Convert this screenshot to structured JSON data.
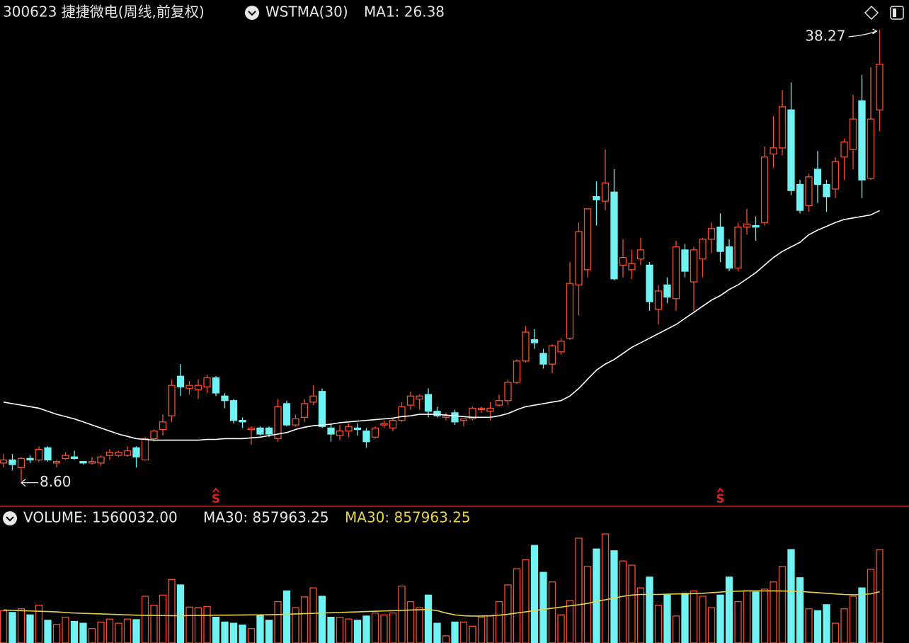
{
  "chart_data": {
    "type": "candlestick",
    "title": "300623 捷捷微电(周线,前复权)",
    "price": {
      "indicator": "WSTMA(30)",
      "ylim": [
        7.0,
        40.22
      ],
      "up_color": "#f0502e",
      "down_color": "#70f2f2",
      "open": [
        9.8,
        10.0,
        9.5,
        10.1,
        10.0,
        10.8,
        9.8,
        10.1,
        10.2,
        9.9,
        9.8,
        9.8,
        10.3,
        10.3,
        10.3,
        10.8,
        10.0,
        11.4,
        12.0,
        12.9,
        15.5,
        14.7,
        14.6,
        14.8,
        15.4,
        14.2,
        13.9,
        12.6,
        12.0,
        12.1,
        12.1,
        11.4,
        13.7,
        12.3,
        12.8,
        13.8,
        14.5,
        12.1,
        11.6,
        11.9,
        12.1,
        11.9,
        11.5,
        12.3,
        12.1,
        12.6,
        13.6,
        14.0,
        14.3,
        13.2,
        12.8,
        13.1,
        12.6,
        12.7,
        13.3,
        13.2,
        13.6,
        13.9,
        15.1,
        16.5,
        17.9,
        17.0,
        16.3,
        17.1,
        18.0,
        21.5,
        22.5,
        27.3,
        27.0,
        27.6,
        22.8,
        22.5,
        23.2,
        22.8,
        19.9,
        21.5,
        20.6,
        23.8,
        21.7,
        23.2,
        24.5,
        25.3,
        24.0,
        22.6,
        25.3,
        25.4,
        25.6,
        30.1,
        30.5,
        33.0,
        28.1,
        26.7,
        29.1,
        28.1,
        27.8,
        29.9,
        30.4,
        33.6,
        28.5,
        33.0
      ],
      "close": [
        10.0,
        9.7,
        10.1,
        10.0,
        10.7,
        10.0,
        9.9,
        10.3,
        10.1,
        9.8,
        9.9,
        10.2,
        10.5,
        10.5,
        10.6,
        10.2,
        11.4,
        11.9,
        12.5,
        14.9,
        14.8,
        14.9,
        14.9,
        15.4,
        14.4,
        13.9,
        12.6,
        12.5,
        12.1,
        11.7,
        11.7,
        13.5,
        12.3,
        12.7,
        13.7,
        14.2,
        12.2,
        11.7,
        11.9,
        12.2,
        12.0,
        11.2,
        12.1,
        12.4,
        12.6,
        13.5,
        14.2,
        14.2,
        13.2,
        12.9,
        12.9,
        12.5,
        12.7,
        13.4,
        13.4,
        13.4,
        13.9,
        15.1,
        16.5,
        18.4,
        17.7,
        16.3,
        17.5,
        17.8,
        21.6,
        25.0,
        26.5,
        27.1,
        28.2,
        21.9,
        23.3,
        22.9,
        23.8,
        20.4,
        21.1,
        20.7,
        24.0,
        22.4,
        23.8,
        24.5,
        25.2,
        23.7,
        22.6,
        25.3,
        25.5,
        25.3,
        29.9,
        30.5,
        33.2,
        27.7,
        26.4,
        28.6,
        28.1,
        27.3,
        29.6,
        30.9,
        32.4,
        28.4,
        32.4,
        36.0
      ],
      "low": [
        9.5,
        9.3,
        8.6,
        9.8,
        9.9,
        9.9,
        9.5,
        10.0,
        10.0,
        9.7,
        9.7,
        9.6,
        10.0,
        10.2,
        10.2,
        9.5,
        10.0,
        11.2,
        11.6,
        12.5,
        14.2,
        14.3,
        14.0,
        14.4,
        14.2,
        13.4,
        12.4,
        12.1,
        11.0,
        11.6,
        11.5,
        11.2,
        12.2,
        12.2,
        12.5,
        13.6,
        12.1,
        11.2,
        11.3,
        11.5,
        11.6,
        10.8,
        11.4,
        12.1,
        11.9,
        12.5,
        13.3,
        13.3,
        12.8,
        12.8,
        12.6,
        12.3,
        12.2,
        12.6,
        13.1,
        12.6,
        13.5,
        13.6,
        15.0,
        16.4,
        17.3,
        16.0,
        15.7,
        16.9,
        17.9,
        19.5,
        22.0,
        25.4,
        26.4,
        21.8,
        22.0,
        21.9,
        22.8,
        19.8,
        18.9,
        20.3,
        19.8,
        22.0,
        19.8,
        22.0,
        23.6,
        23.0,
        22.4,
        22.4,
        24.8,
        24.4,
        25.4,
        29.2,
        30.0,
        27.4,
        26.2,
        26.3,
        26.9,
        26.3,
        27.2,
        28.4,
        29.1,
        27.2,
        28.4,
        31.6
      ],
      "high": [
        10.4,
        10.4,
        10.2,
        10.3,
        10.9,
        10.9,
        10.0,
        10.5,
        10.6,
        9.9,
        10.2,
        10.3,
        10.7,
        10.6,
        10.9,
        10.9,
        11.5,
        12.0,
        13.0,
        15.3,
        16.3,
        15.2,
        15.3,
        15.6,
        15.5,
        14.4,
        14.0,
        12.8,
        12.2,
        12.2,
        12.2,
        14.0,
        13.9,
        13.0,
        14.0,
        14.9,
        14.7,
        12.4,
        12.3,
        12.4,
        12.4,
        12.1,
        12.2,
        12.6,
        12.7,
        13.8,
        14.5,
        14.3,
        14.7,
        13.5,
        13.1,
        13.3,
        12.7,
        13.5,
        13.5,
        13.8,
        14.3,
        15.3,
        16.6,
        18.8,
        18.6,
        17.3,
        17.6,
        18.0,
        23.0,
        25.6,
        26.5,
        28.3,
        30.4,
        29.1,
        24.5,
        23.8,
        24.6,
        23.0,
        21.5,
        22.0,
        24.4,
        24.2,
        24.0,
        24.6,
        25.6,
        26.2,
        24.5,
        25.6,
        26.5,
        26.0,
        30.6,
        32.6,
        34.3,
        34.8,
        28.4,
        28.8,
        30.3,
        28.4,
        29.9,
        31.1,
        34.0,
        35.3,
        35.8,
        38.27
      ],
      "ma": {
        "name": "MA1: 26.38",
        "color": "#ffffff",
        "values": [
          13.8,
          13.7,
          13.6,
          13.5,
          13.4,
          13.2,
          13.0,
          12.85,
          12.7,
          12.5,
          12.3,
          12.1,
          11.9,
          11.7,
          11.55,
          11.4,
          11.35,
          11.3,
          11.3,
          11.3,
          11.3,
          11.3,
          11.3,
          11.35,
          11.35,
          11.4,
          11.4,
          11.4,
          11.45,
          11.5,
          11.6,
          11.7,
          11.8,
          12.0,
          12.15,
          12.25,
          12.3,
          12.35,
          12.45,
          12.5,
          12.55,
          12.6,
          12.65,
          12.7,
          12.75,
          12.85,
          12.9,
          13.0,
          13.0,
          13.0,
          12.95,
          12.9,
          12.85,
          12.8,
          12.8,
          12.8,
          12.9,
          13.05,
          13.3,
          13.5,
          13.6,
          13.7,
          13.8,
          13.9,
          14.2,
          14.7,
          15.3,
          15.9,
          16.3,
          16.6,
          17.0,
          17.4,
          17.7,
          18.0,
          18.3,
          18.6,
          18.9,
          19.3,
          19.7,
          20.1,
          20.5,
          20.8,
          21.2,
          21.5,
          21.9,
          22.3,
          22.8,
          23.3,
          23.7,
          24.0,
          24.3,
          24.8,
          25.1,
          25.35,
          25.6,
          25.8,
          25.9,
          26.0,
          26.1,
          26.38
        ]
      },
      "annotations": [
        {
          "value": 38.27,
          "label": "38.27"
        },
        {
          "value": 8.6,
          "label": "8.60"
        }
      ],
      "signals": [
        {
          "index": 24,
          "label": "S"
        },
        {
          "index": 81,
          "label": "S"
        }
      ]
    },
    "volume": {
      "name": "VOLUME: 1560032.00",
      "ylim": [
        0,
        2270000
      ],
      "values": [
        540000,
        510000,
        570000,
        470000,
        630000,
        380000,
        310000,
        430000,
        360000,
        330000,
        240000,
        350000,
        400000,
        330000,
        400000,
        390000,
        780000,
        630000,
        800000,
        1060000,
        970000,
        600000,
        590000,
        610000,
        430000,
        350000,
        330000,
        300000,
        240000,
        470000,
        380000,
        690000,
        870000,
        590000,
        770000,
        920000,
        780000,
        430000,
        430000,
        400000,
        380000,
        450000,
        500000,
        470000,
        500000,
        950000,
        690000,
        590000,
        800000,
        330000,
        120000,
        350000,
        350000,
        280000,
        430000,
        450000,
        690000,
        970000,
        1240000,
        1390000,
        1630000,
        1180000,
        1020000,
        470000,
        710000,
        1750000,
        1280000,
        1570000,
        1820000,
        1540000,
        1370000,
        1300000,
        920000,
        1100000,
        630000,
        800000,
        450000,
        830000,
        870000,
        780000,
        590000,
        800000,
        1100000,
        690000,
        870000,
        850000,
        900000,
        1020000,
        1280000,
        1560000,
        1090000,
        570000,
        540000,
        640000,
        330000,
        570000,
        780000,
        920000,
        1230000,
        1560032
      ],
      "ma": {
        "name": "MA30: 857963.25",
        "name_colored": "MA30: 857963.25",
        "color": "#e6d24a",
        "values": [
          550000,
          545000,
          540000,
          535000,
          530000,
          525000,
          520000,
          510000,
          500000,
          495000,
          490000,
          485000,
          480000,
          475000,
          470000,
          465000,
          462000,
          460000,
          458000,
          456000,
          455000,
          458000,
          460000,
          462000,
          465000,
          465000,
          466000,
          468000,
          470000,
          470000,
          472000,
          475000,
          480000,
          485000,
          490000,
          495000,
          500000,
          505000,
          510000,
          515000,
          520000,
          525000,
          530000,
          535000,
          540000,
          545000,
          550000,
          555000,
          560000,
          540000,
          500000,
          470000,
          455000,
          450000,
          450000,
          455000,
          465000,
          480000,
          500000,
          520000,
          540000,
          560000,
          580000,
          600000,
          620000,
          640000,
          660000,
          700000,
          720000,
          750000,
          780000,
          800000,
          810000,
          810000,
          810000,
          815000,
          820000,
          820000,
          825000,
          830000,
          840000,
          850000,
          860000,
          865000,
          870000,
          870000,
          870000,
          870000,
          868000,
          866000,
          860000,
          850000,
          840000,
          830000,
          820000,
          810000,
          805000,
          810000,
          820000,
          857963.25
        ]
      }
    }
  }
}
